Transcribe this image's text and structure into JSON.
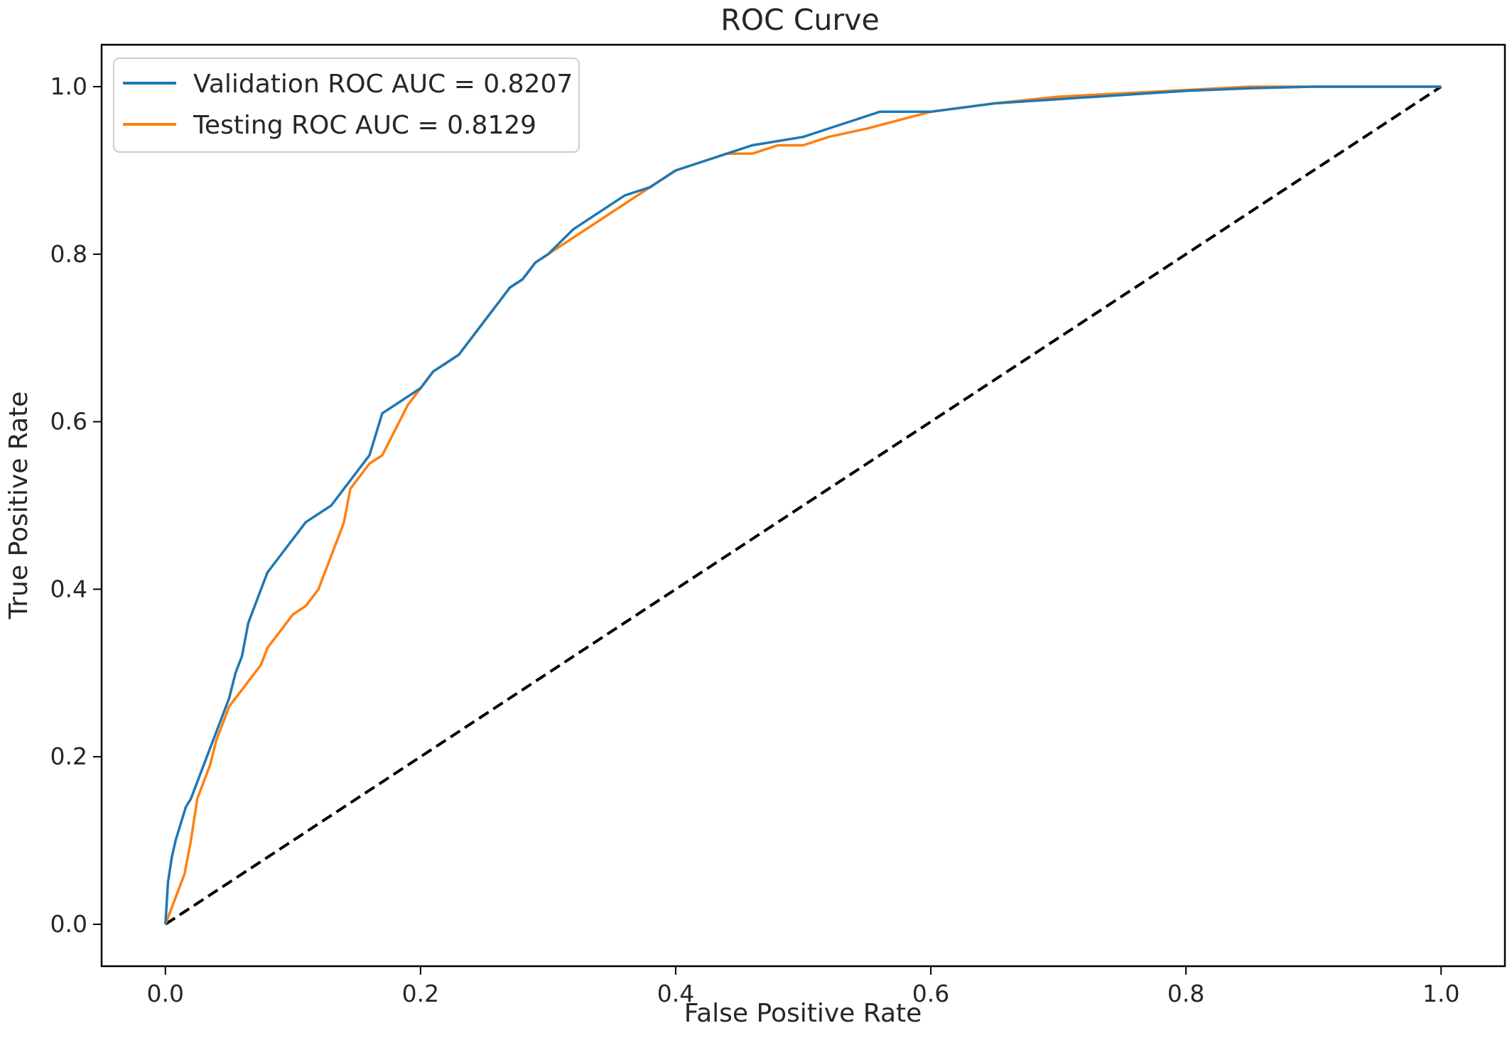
{
  "chart_data": {
    "type": "line",
    "title": "ROC Curve",
    "xlabel": "False Positive Rate",
    "ylabel": "True Positive Rate",
    "xlim": [
      -0.05,
      1.05
    ],
    "ylim": [
      -0.05,
      1.05
    ],
    "xticks": [
      0.0,
      0.2,
      0.4,
      0.6,
      0.8,
      1.0
    ],
    "yticks": [
      0.0,
      0.2,
      0.4,
      0.6,
      0.8,
      1.0
    ],
    "xtick_labels": [
      "0.0",
      "0.2",
      "0.4",
      "0.6",
      "0.8",
      "1.0"
    ],
    "ytick_labels": [
      "0.0",
      "0.2",
      "0.4",
      "0.6",
      "0.8",
      "1.0"
    ],
    "grid": false,
    "legend_position": "upper-left",
    "series": [
      {
        "name": "Validation ROC AUC = 0.8207",
        "color": "#1f77b4",
        "style": "solid",
        "x": [
          0.0,
          0.002,
          0.005,
          0.008,
          0.012,
          0.016,
          0.02,
          0.025,
          0.03,
          0.035,
          0.04,
          0.045,
          0.05,
          0.055,
          0.06,
          0.065,
          0.07,
          0.075,
          0.08,
          0.085,
          0.09,
          0.095,
          0.1,
          0.11,
          0.12,
          0.13,
          0.14,
          0.15,
          0.16,
          0.17,
          0.18,
          0.19,
          0.2,
          0.21,
          0.22,
          0.23,
          0.24,
          0.25,
          0.26,
          0.27,
          0.28,
          0.29,
          0.3,
          0.32,
          0.34,
          0.36,
          0.38,
          0.4,
          0.42,
          0.44,
          0.46,
          0.5,
          0.52,
          0.54,
          0.56,
          0.6,
          0.65,
          0.7,
          0.75,
          0.8,
          0.85,
          0.9,
          0.95,
          0.96,
          1.0
        ],
        "y": [
          0.0,
          0.05,
          0.08,
          0.1,
          0.12,
          0.14,
          0.15,
          0.17,
          0.19,
          0.21,
          0.23,
          0.25,
          0.27,
          0.3,
          0.32,
          0.36,
          0.38,
          0.4,
          0.42,
          0.43,
          0.44,
          0.45,
          0.46,
          0.48,
          0.49,
          0.5,
          0.52,
          0.54,
          0.56,
          0.61,
          0.62,
          0.63,
          0.64,
          0.66,
          0.67,
          0.68,
          0.7,
          0.72,
          0.74,
          0.76,
          0.77,
          0.79,
          0.8,
          0.83,
          0.85,
          0.87,
          0.88,
          0.9,
          0.91,
          0.92,
          0.93,
          0.94,
          0.95,
          0.96,
          0.97,
          0.97,
          0.98,
          0.985,
          0.99,
          0.995,
          0.998,
          1.0,
          1.0,
          1.0,
          1.0
        ]
      },
      {
        "name": "Testing ROC AUC = 0.8129",
        "color": "#ff7f0e",
        "style": "solid",
        "x": [
          0.0,
          0.005,
          0.01,
          0.015,
          0.02,
          0.025,
          0.03,
          0.035,
          0.04,
          0.045,
          0.05,
          0.055,
          0.06,
          0.065,
          0.07,
          0.075,
          0.08,
          0.085,
          0.09,
          0.095,
          0.1,
          0.11,
          0.12,
          0.125,
          0.13,
          0.135,
          0.14,
          0.145,
          0.15,
          0.16,
          0.17,
          0.18,
          0.19,
          0.2,
          0.21,
          0.22,
          0.23,
          0.24,
          0.25,
          0.26,
          0.27,
          0.28,
          0.29,
          0.3,
          0.32,
          0.34,
          0.36,
          0.38,
          0.4,
          0.42,
          0.44,
          0.46,
          0.48,
          0.5,
          0.52,
          0.55,
          0.6,
          0.65,
          0.7,
          0.75,
          0.8,
          0.85,
          0.9,
          0.95,
          1.0
        ],
        "y": [
          0.0,
          0.02,
          0.04,
          0.06,
          0.1,
          0.15,
          0.17,
          0.19,
          0.22,
          0.24,
          0.26,
          0.27,
          0.28,
          0.29,
          0.3,
          0.31,
          0.33,
          0.34,
          0.35,
          0.36,
          0.37,
          0.38,
          0.4,
          0.42,
          0.44,
          0.46,
          0.48,
          0.52,
          0.53,
          0.55,
          0.56,
          0.59,
          0.62,
          0.64,
          0.66,
          0.67,
          0.68,
          0.7,
          0.72,
          0.74,
          0.76,
          0.77,
          0.79,
          0.8,
          0.82,
          0.84,
          0.86,
          0.88,
          0.9,
          0.91,
          0.92,
          0.92,
          0.93,
          0.93,
          0.94,
          0.95,
          0.97,
          0.98,
          0.988,
          0.992,
          0.996,
          1.0,
          1.0,
          1.0,
          1.0
        ]
      },
      {
        "name": "",
        "color": "#000000",
        "style": "dashed",
        "x": [
          0.0,
          1.0
        ],
        "y": [
          0.0,
          1.0
        ]
      }
    ]
  }
}
